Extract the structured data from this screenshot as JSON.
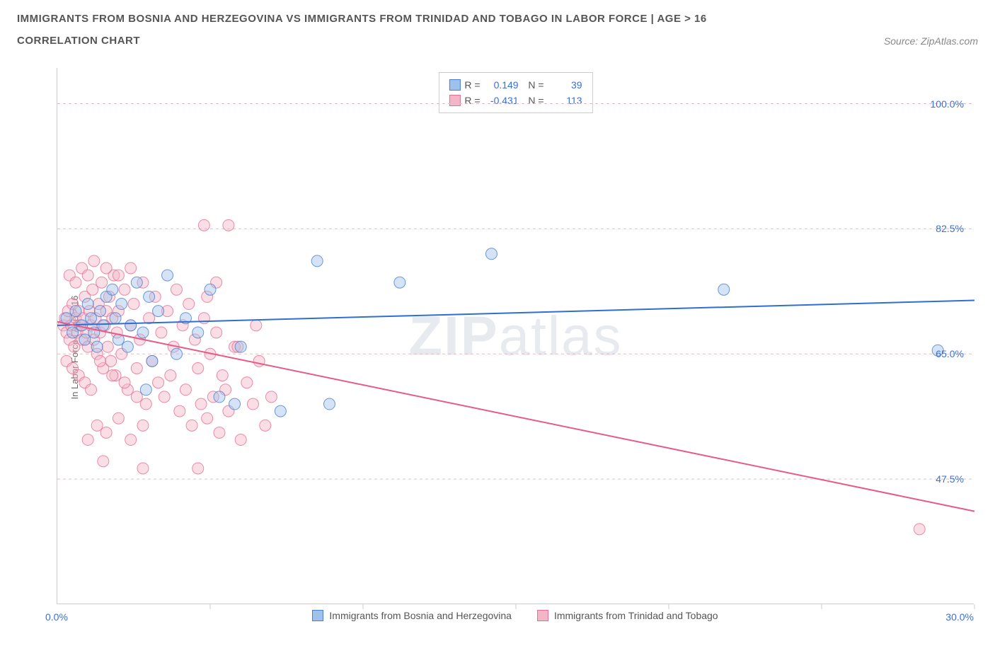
{
  "header": {
    "title": "IMMIGRANTS FROM BOSNIA AND HERZEGOVINA VS IMMIGRANTS FROM TRINIDAD AND TOBAGO IN LABOR FORCE | AGE > 16",
    "subtitle": "CORRELATION CHART",
    "source_prefix": "Source: ",
    "source_name": "ZipAtlas.com"
  },
  "watermark": {
    "bold": "ZIP",
    "rest": "atlas"
  },
  "chart": {
    "type": "scatter",
    "background_color": "#ffffff",
    "grid_color_dashed": "#e8b8c2",
    "axis_color": "#cccccc",
    "y_axis_label": "In Labor Force | Age > 16",
    "y_label_color": "#666666",
    "tick_label_color": "#3b6fd6",
    "xlim": [
      0,
      30
    ],
    "ylim": [
      30,
      105
    ],
    "x_ticks": [
      0,
      5,
      10,
      15,
      20,
      25,
      30
    ],
    "x_tick_labels": {
      "0": "0.0%",
      "30": "30.0%"
    },
    "y_grid": [
      47.5,
      65.0,
      82.5,
      100.0
    ],
    "y_tick_labels": [
      "47.5%",
      "65.0%",
      "82.5%",
      "100.0%"
    ],
    "marker_radius": 8,
    "marker_opacity": 0.45,
    "line_width": 2,
    "series": [
      {
        "name": "Immigrants from Bosnia and Herzegovina",
        "color_fill": "#9fc1ea",
        "color_stroke": "#4a7fd0",
        "line_color": "#2f6fd0",
        "R": "0.149",
        "N": "39",
        "trend": {
          "x1": 0,
          "y1": 69.0,
          "x2": 30,
          "y2": 72.5
        },
        "points": [
          [
            0.3,
            70
          ],
          [
            0.5,
            68
          ],
          [
            0.6,
            71
          ],
          [
            0.8,
            69
          ],
          [
            0.9,
            67
          ],
          [
            1.0,
            72
          ],
          [
            1.1,
            70
          ],
          [
            1.2,
            68
          ],
          [
            1.3,
            66
          ],
          [
            1.4,
            71
          ],
          [
            1.5,
            69
          ],
          [
            1.6,
            73
          ],
          [
            1.8,
            74
          ],
          [
            1.9,
            70
          ],
          [
            2.0,
            67
          ],
          [
            2.1,
            72
          ],
          [
            2.3,
            66
          ],
          [
            2.4,
            69
          ],
          [
            2.6,
            75
          ],
          [
            2.8,
            68
          ],
          [
            2.9,
            60
          ],
          [
            3.0,
            73
          ],
          [
            3.1,
            64
          ],
          [
            3.3,
            71
          ],
          [
            3.6,
            76
          ],
          [
            3.9,
            65
          ],
          [
            4.2,
            70
          ],
          [
            4.6,
            68
          ],
          [
            5.0,
            74
          ],
          [
            5.3,
            59
          ],
          [
            5.8,
            58
          ],
          [
            6.0,
            66
          ],
          [
            7.3,
            57
          ],
          [
            8.5,
            78
          ],
          [
            8.9,
            58
          ],
          [
            11.2,
            75
          ],
          [
            14.2,
            79
          ],
          [
            21.8,
            74
          ],
          [
            28.8,
            65.5
          ]
        ]
      },
      {
        "name": "Immigrants from Trinidad and Tobago",
        "color_fill": "#f2b6c6",
        "color_stroke": "#e76f94",
        "line_color": "#e75a86",
        "R": "-0.431",
        "N": "113",
        "trend": {
          "x1": 0,
          "y1": 69.5,
          "x2": 30,
          "y2": 43.0
        },
        "points": [
          [
            0.2,
            69
          ],
          [
            0.25,
            70
          ],
          [
            0.3,
            68
          ],
          [
            0.35,
            71
          ],
          [
            0.4,
            67
          ],
          [
            0.45,
            69
          ],
          [
            0.5,
            72
          ],
          [
            0.55,
            66
          ],
          [
            0.6,
            70
          ],
          [
            0.65,
            68
          ],
          [
            0.7,
            71
          ],
          [
            0.75,
            69
          ],
          [
            0.8,
            67
          ],
          [
            0.85,
            70
          ],
          [
            0.9,
            73
          ],
          [
            0.95,
            68
          ],
          [
            1.0,
            66
          ],
          [
            1.05,
            71
          ],
          [
            1.1,
            69
          ],
          [
            1.15,
            74
          ],
          [
            1.2,
            67
          ],
          [
            1.25,
            70
          ],
          [
            1.3,
            65
          ],
          [
            1.35,
            72
          ],
          [
            1.4,
            68
          ],
          [
            1.45,
            75
          ],
          [
            1.5,
            63
          ],
          [
            1.55,
            69
          ],
          [
            1.6,
            71
          ],
          [
            1.65,
            66
          ],
          [
            1.7,
            73
          ],
          [
            1.75,
            64
          ],
          [
            1.8,
            70
          ],
          [
            1.85,
            76
          ],
          [
            1.9,
            62
          ],
          [
            1.95,
            68
          ],
          [
            2.0,
            71
          ],
          [
            2.1,
            65
          ],
          [
            2.2,
            74
          ],
          [
            2.3,
            60
          ],
          [
            2.4,
            69
          ],
          [
            2.5,
            72
          ],
          [
            2.6,
            63
          ],
          [
            2.7,
            67
          ],
          [
            2.8,
            75
          ],
          [
            2.9,
            58
          ],
          [
            3.0,
            70
          ],
          [
            3.1,
            64
          ],
          [
            3.2,
            73
          ],
          [
            3.3,
            61
          ],
          [
            3.4,
            68
          ],
          [
            3.5,
            59
          ],
          [
            3.6,
            71
          ],
          [
            3.7,
            62
          ],
          [
            3.8,
            66
          ],
          [
            3.9,
            74
          ],
          [
            4.0,
            57
          ],
          [
            4.1,
            69
          ],
          [
            4.2,
            60
          ],
          [
            4.3,
            72
          ],
          [
            4.4,
            55
          ],
          [
            4.5,
            67
          ],
          [
            4.6,
            63
          ],
          [
            4.7,
            58
          ],
          [
            4.8,
            70
          ],
          [
            4.9,
            56
          ],
          [
            5.0,
            65
          ],
          [
            5.1,
            59
          ],
          [
            5.2,
            68
          ],
          [
            5.3,
            54
          ],
          [
            5.4,
            62
          ],
          [
            5.5,
            60
          ],
          [
            5.6,
            57
          ],
          [
            5.8,
            66
          ],
          [
            6.0,
            53
          ],
          [
            6.2,
            61
          ],
          [
            6.4,
            58
          ],
          [
            6.6,
            64
          ],
          [
            6.8,
            55
          ],
          [
            7.0,
            59
          ],
          [
            0.4,
            76
          ],
          [
            0.6,
            75
          ],
          [
            0.8,
            77
          ],
          [
            1.0,
            76
          ],
          [
            1.2,
            78
          ],
          [
            1.4,
            64
          ],
          [
            1.6,
            77
          ],
          [
            1.8,
            62
          ],
          [
            2.0,
            76
          ],
          [
            2.2,
            61
          ],
          [
            2.4,
            77
          ],
          [
            2.6,
            59
          ],
          [
            2.8,
            55
          ],
          [
            1.0,
            53
          ],
          [
            1.3,
            55
          ],
          [
            1.6,
            54
          ],
          [
            2.0,
            56
          ],
          [
            2.4,
            53
          ],
          [
            1.5,
            50
          ],
          [
            2.8,
            49
          ],
          [
            4.6,
            49
          ],
          [
            4.8,
            83
          ],
          [
            5.6,
            83
          ],
          [
            4.9,
            73
          ],
          [
            5.2,
            75
          ],
          [
            5.9,
            66
          ],
          [
            6.5,
            69
          ],
          [
            0.3,
            64
          ],
          [
            0.5,
            63
          ],
          [
            0.7,
            62
          ],
          [
            0.9,
            61
          ],
          [
            1.1,
            60
          ],
          [
            28.2,
            40.5
          ]
        ]
      }
    ]
  },
  "legend": {
    "items": [
      {
        "label": "Immigrants from Bosnia and Herzegovina",
        "fill": "#9fc1ea",
        "stroke": "#4a7fd0"
      },
      {
        "label": "Immigrants from Trinidad and Tobago",
        "fill": "#f2b6c6",
        "stroke": "#e76f94"
      }
    ]
  }
}
